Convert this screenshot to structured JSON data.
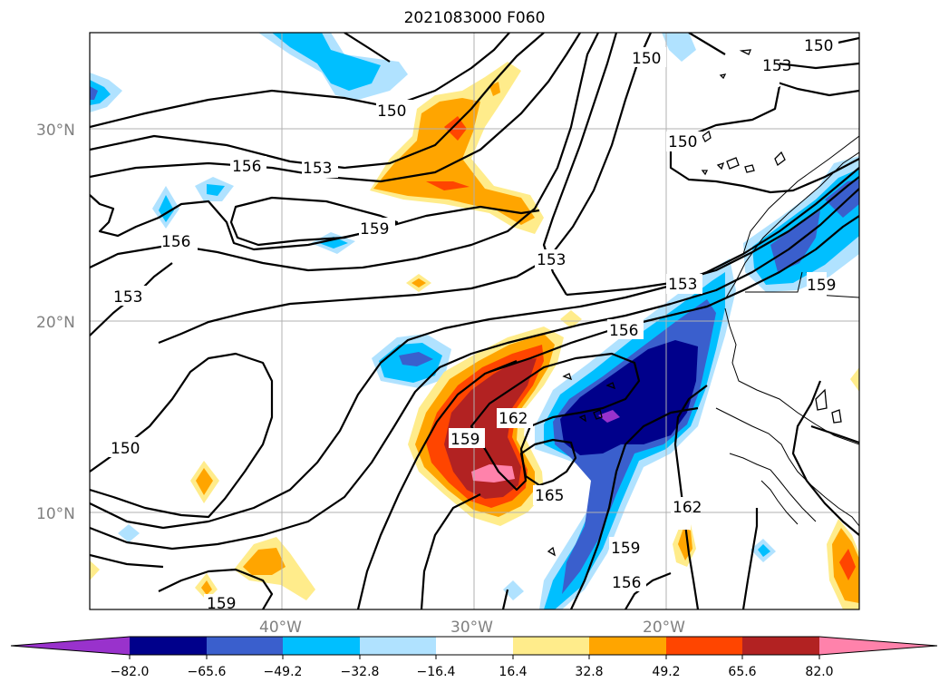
{
  "title": "2021083000 F060",
  "map": {
    "lat_labels": [
      "30°N",
      "20°N",
      "10°N"
    ],
    "lon_labels": [
      "40°W",
      "30°W",
      "20°W"
    ],
    "grid": true,
    "contour_levels": [
      "150",
      "153",
      "156",
      "159",
      "162",
      "165"
    ]
  },
  "colorbar": {
    "ticks": [
      "−82.0",
      "−65.6",
      "−49.2",
      "−32.8",
      "−16.4",
      "16.4",
      "32.8",
      "49.2",
      "65.6",
      "82.0"
    ],
    "colors": [
      "#9932CC",
      "#00008B",
      "#3A5FCD",
      "#00BFFF",
      "#B0E2FF",
      "#FFFFFF",
      "#FFEC8B",
      "#FFA500",
      "#FF4500",
      "#B22222",
      "#FF82AB"
    ],
    "extend": "both"
  },
  "colors": {
    "frame": "#000000",
    "grid": "#b0b0b0",
    "contour": "#000000",
    "coast": "#000000"
  }
}
